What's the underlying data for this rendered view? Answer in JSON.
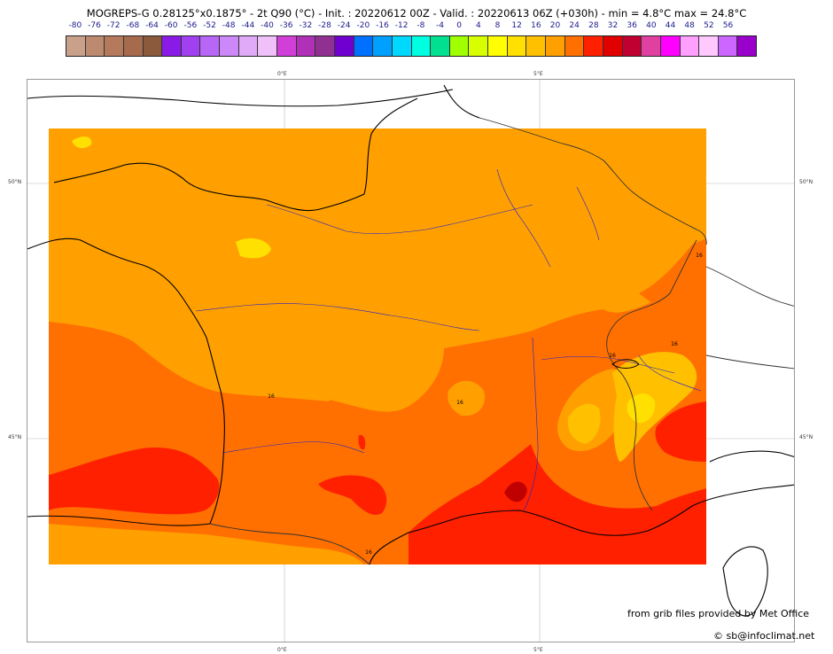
{
  "title": "MOGREPS-G 0.28125°x0.1875° - 2t Q90 (°C) - Init. : 20220612 00Z - Valid. : 20220613 06Z (+030h) - min = 4.8°C max = 24.8°C",
  "scale": {
    "labels": [
      "-80",
      "-76",
      "-72",
      "-68",
      "-64",
      "-60",
      "-56",
      "-52",
      "-48",
      "-44",
      "-40",
      "-36",
      "-32",
      "-28",
      "-24",
      "-20",
      "-16",
      "-12",
      "-8",
      "-4",
      "0",
      "4",
      "8",
      "12",
      "16",
      "20",
      "24",
      "28",
      "32",
      "36",
      "40",
      "44",
      "48",
      "52",
      "56"
    ],
    "colors": [
      "#c9a08a",
      "#bd8a70",
      "#b57a5c",
      "#a66a4c",
      "#8b5a3c",
      "#8a1ae6",
      "#a040f0",
      "#b866f5",
      "#cc88f8",
      "#e0aaf8",
      "#f0c0f8",
      "#d040d8",
      "#b030b8",
      "#903090",
      "#7000d0",
      "#0070ff",
      "#00a0ff",
      "#00d8ff",
      "#00ffe0",
      "#00e090",
      "#a0ff00",
      "#d8ff00",
      "#ffff00",
      "#ffe000",
      "#ffc000",
      "#ffa000",
      "#ff7000",
      "#ff2000",
      "#e00000",
      "#c00030",
      "#e040a0",
      "#ff00ff",
      "#ffa0ff",
      "#ffc8ff",
      "#cc66ff",
      "#9900cc"
    ]
  },
  "map": {
    "lon_ticks": [
      "0°E",
      "5°E"
    ],
    "lat_ticks": [
      "50°N",
      "45°N"
    ],
    "contour_labels": [
      "16",
      "16",
      "16",
      "16",
      "16",
      "16",
      "16"
    ]
  },
  "credits": {
    "provider": "from grib files provided by Met Office",
    "copyright": "© sb@infoclimat.net"
  }
}
